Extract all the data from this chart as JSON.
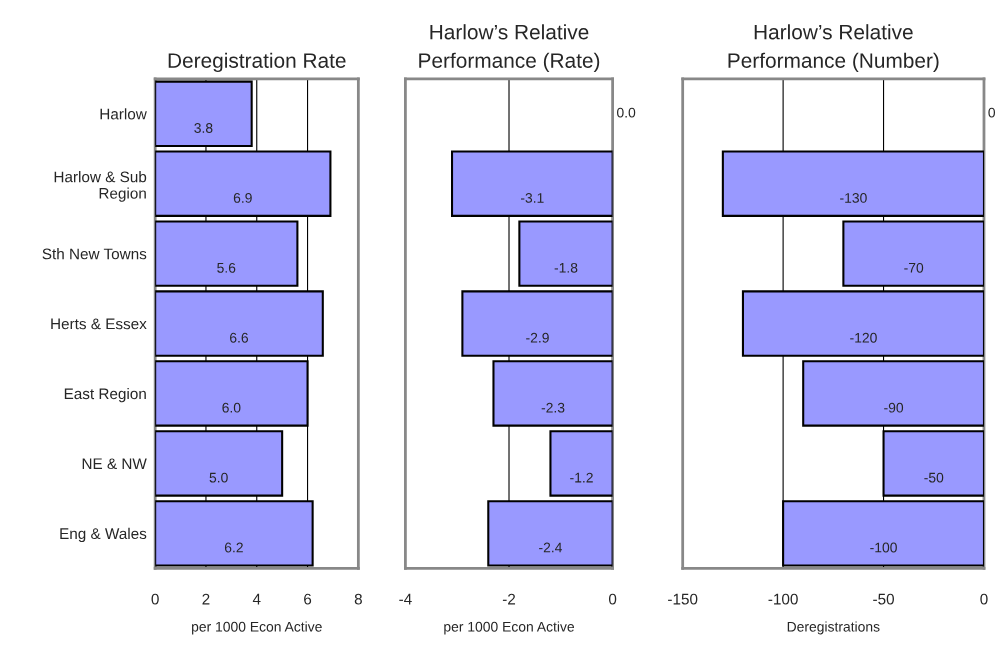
{
  "chart_data": [
    {
      "type": "bar",
      "orientation": "horizontal",
      "title": "Deregistration Rate",
      "xlabel": "per 1000 Econ Active",
      "categories": [
        "Harlow",
        "Harlow & Sub Region",
        "Sth New Towns",
        "Herts & Essex",
        "East Region",
        "NE & NW",
        "Eng & Wales"
      ],
      "values": [
        3.8,
        6.9,
        5.6,
        6.6,
        6.0,
        5.0,
        6.2
      ],
      "value_labels": [
        "3.8",
        "6.9",
        "5.6",
        "6.6",
        "6.0",
        "5.0",
        "6.2"
      ],
      "color": "#9999ff",
      "xlim": [
        0,
        8
      ],
      "xticks": [
        0,
        2,
        4,
        6,
        8
      ],
      "grid": "x"
    },
    {
      "type": "bar",
      "orientation": "horizontal",
      "title": "Harlow’s Relative Performance (Rate)",
      "xlabel": "per 1000 Econ Active",
      "categories": [
        null,
        null,
        null,
        null,
        null,
        null,
        null
      ],
      "values": [
        0.0,
        -3.1,
        -1.8,
        -2.9,
        -2.3,
        -1.2,
        -2.4
      ],
      "value_labels": [
        "0.0",
        "-3.1",
        "-1.8",
        "-2.9",
        "-2.3",
        "-1.2",
        "-2.4"
      ],
      "color": "#9999ff",
      "xlim": [
        -4,
        0
      ],
      "xticks": [
        -4,
        -2,
        0
      ],
      "grid": "x",
      "tick_labels": "x"
    },
    {
      "type": "bar",
      "orientation": "horizontal",
      "title": "Harlow’s Relative Performance (Number)",
      "xlabel": "Deregistrations",
      "categories": [
        null,
        null,
        null,
        null,
        null,
        null,
        null
      ],
      "values": [
        0,
        -130,
        -70,
        -120,
        -90,
        -50,
        -100
      ],
      "value_labels": [
        "0",
        "-130",
        "-70",
        "-120",
        "-90",
        "-50",
        "-100"
      ],
      "color": "#9999ff",
      "xlim": [
        -150,
        0
      ],
      "xticks": [
        -150,
        -100,
        -50,
        0
      ],
      "grid": "x",
      "tick_labels": "x"
    }
  ]
}
